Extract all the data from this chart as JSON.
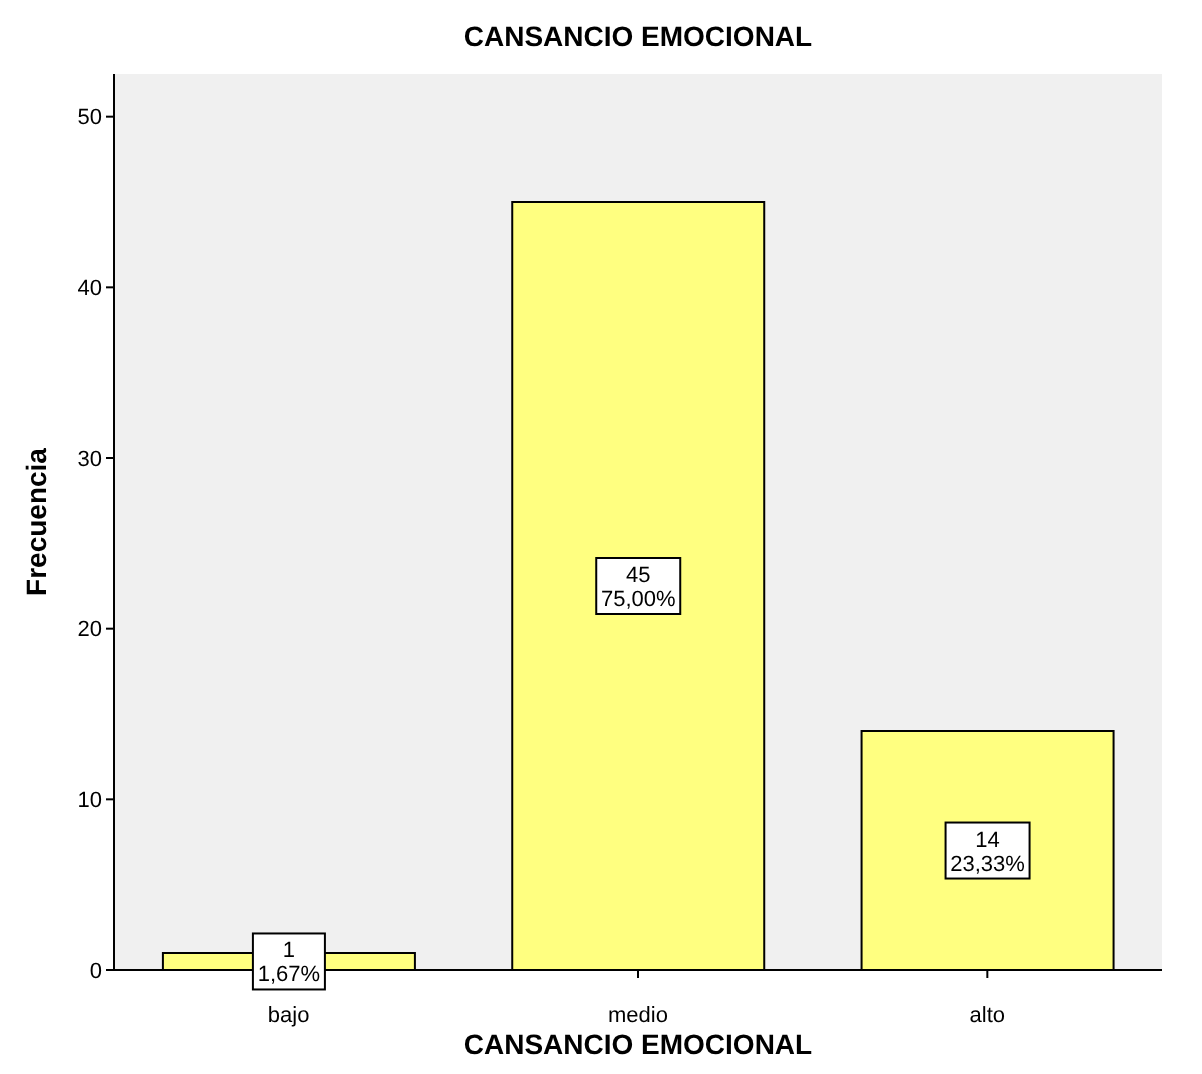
{
  "chart_data": {
    "type": "bar",
    "title": "CANSANCIO EMOCIONAL",
    "xlabel": "CANSANCIO EMOCIONAL",
    "ylabel": "Frecuencia",
    "categories": [
      "bajo",
      "medio",
      "alto"
    ],
    "values": [
      1,
      45,
      14
    ],
    "value_labels": [
      "1\n1,67%",
      "45\n75,00%",
      "14\n23,33%"
    ],
    "color": "#ffff80",
    "ylim": [
      0,
      52.5
    ],
    "yticks": [
      0,
      10,
      20,
      30,
      40,
      50
    ],
    "grid": false
  }
}
